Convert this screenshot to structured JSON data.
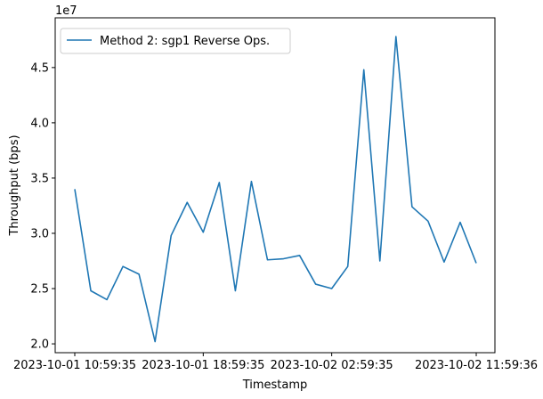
{
  "chart_data": {
    "type": "line",
    "title": "",
    "xlabel": "Timestamp",
    "ylabel": "Throughput (bps)",
    "y_offset_label": "1e7",
    "ylim": [
      1.92,
      4.95
    ],
    "y_scale": 10000000,
    "y_ticks": [
      2.0,
      2.5,
      3.0,
      3.5,
      4.0,
      4.5
    ],
    "y_tick_labels": [
      "2.0",
      "2.5",
      "3.0",
      "3.5",
      "4.0",
      "4.5"
    ],
    "x_ticks": [
      {
        "label": "2023-10-01  10:59:35",
        "index": 0
      },
      {
        "label": "2023-10-01  18:59:35",
        "index": 8
      },
      {
        "label": "2023-10-02  02:59:35",
        "index": 16
      },
      {
        "label": "2023-10-02  11:59:36",
        "index": 25
      }
    ],
    "legend": {
      "location": "upper left"
    },
    "grid": false,
    "series": [
      {
        "name": "Method 2: sgp1 Reverse Ops.",
        "color": "#1f77b4",
        "x": [
          "2023-10-01 10:59:35",
          "2023-10-01 11:59:35",
          "2023-10-01 12:59:35",
          "2023-10-01 13:59:35",
          "2023-10-01 14:59:35",
          "2023-10-01 15:59:35",
          "2023-10-01 16:59:35",
          "2023-10-01 17:59:35",
          "2023-10-01 18:59:35",
          "2023-10-01 19:59:35",
          "2023-10-01 20:59:35",
          "2023-10-01 21:59:35",
          "2023-10-01 22:59:35",
          "2023-10-01 23:59:35",
          "2023-10-02 00:59:35",
          "2023-10-02 01:59:35",
          "2023-10-02 02:59:35",
          "2023-10-02 03:59:35",
          "2023-10-02 04:59:35",
          "2023-10-02 05:59:35",
          "2023-10-02 06:59:35",
          "2023-10-02 07:59:35",
          "2023-10-02 08:59:35",
          "2023-10-02 09:59:35",
          "2023-10-02 10:59:36",
          "2023-10-02 11:59:36"
        ],
        "values": [
          3.4,
          2.48,
          2.4,
          2.7,
          2.63,
          2.02,
          2.98,
          3.28,
          3.01,
          3.46,
          2.48,
          3.47,
          2.76,
          2.77,
          2.8,
          2.54,
          2.5,
          2.7,
          4.48,
          2.75,
          4.78,
          3.24,
          3.11,
          2.74,
          3.1,
          2.73
        ]
      }
    ]
  }
}
